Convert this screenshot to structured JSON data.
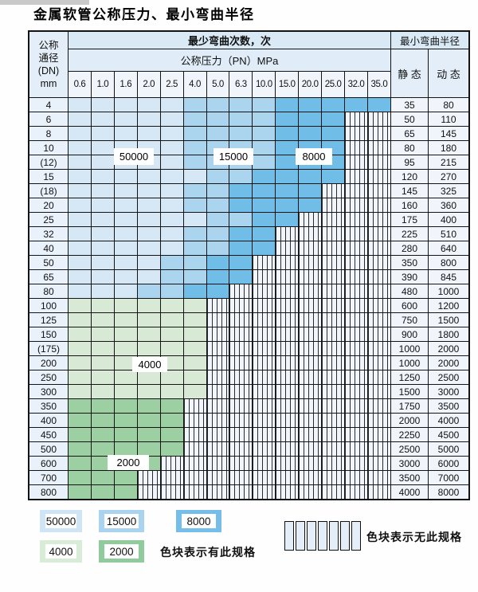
{
  "title": "金属软管公称压力、最小弯曲半径",
  "table_header": {
    "dn_lines": [
      "公称",
      "通径",
      "(DN)",
      "mm"
    ],
    "bend_cycles_label": "最少弯曲次数，次",
    "pressure_label": "公称压力（PN）MPa",
    "radius_label": "最小弯曲半径",
    "static_label": "静 态",
    "dynamic_label": "动 态"
  },
  "overlay_labels": [
    {
      "text": "50000"
    },
    {
      "text": "15000"
    },
    {
      "text": "8000"
    },
    {
      "text": "4000"
    },
    {
      "text": "2000"
    }
  ],
  "legend": {
    "blocks": [
      {
        "label": "50000",
        "color": "#cfe4f5"
      },
      {
        "label": "15000",
        "color": "#a9d3ee"
      },
      {
        "label": "8000",
        "color": "#74bee9"
      },
      {
        "label": "4000",
        "color": "#d9ecd8"
      },
      {
        "label": "2000",
        "color": "#8fcb9d"
      }
    ],
    "has_spec_note": "色块表示有此规格",
    "no_spec_note": "色块表示无此规格"
  },
  "colors": {
    "blue_light": "#d6e8f6",
    "blue_medium": "#abd5ef",
    "blue_deep": "#70bde7",
    "green_light": "#d8e9d5",
    "green_medium": "#9ccfa2",
    "header_band": "#d9e9f6",
    "grid_line": "#141414"
  },
  "chart_data": {
    "type": "heatmap",
    "title": "金属软管公称压力、最小弯曲半径",
    "x_axis_label": "公称压力（PN）MPa",
    "y_axis_label": "公称通径 (DN) mm",
    "cell_value_meaning": "最少弯曲次数，次",
    "columns_pn_mpa": [
      "0.6",
      "1.0",
      "1.6",
      "2.0",
      "2.5",
      "4.0",
      "5.0",
      "6.3",
      "10.0",
      "15.0",
      "20.0",
      "25.0",
      "32.0",
      "35.0"
    ],
    "cycle_bands_blue": [
      "50000",
      "15000",
      "8000"
    ],
    "cycle_bands_green": [
      "4000",
      "2000"
    ],
    "legend_meaning": {
      "colored": "色块表示有此规格",
      "hatched": "色块表示无此规格"
    },
    "rows": [
      {
        "dn": "4",
        "max_pn": "35.0",
        "zone": "blue",
        "static": "35",
        "dynamic": "80"
      },
      {
        "dn": "6",
        "max_pn": "25.0",
        "zone": "blue",
        "static": "50",
        "dynamic": "110"
      },
      {
        "dn": "8",
        "max_pn": "25.0",
        "zone": "blue",
        "static": "65",
        "dynamic": "145"
      },
      {
        "dn": "10",
        "max_pn": "25.0",
        "zone": "blue",
        "static": "80",
        "dynamic": "180"
      },
      {
        "dn": "(12)",
        "max_pn": "25.0",
        "zone": "blue",
        "static": "95",
        "dynamic": "215"
      },
      {
        "dn": "15",
        "max_pn": "25.0",
        "zone": "blue",
        "static": "120",
        "dynamic": "270"
      },
      {
        "dn": "(18)",
        "max_pn": "20.0",
        "zone": "blue",
        "static": "145",
        "dynamic": "325"
      },
      {
        "dn": "20",
        "max_pn": "20.0",
        "zone": "blue",
        "static": "160",
        "dynamic": "360"
      },
      {
        "dn": "25",
        "max_pn": "15.0",
        "zone": "blue",
        "static": "175",
        "dynamic": "400"
      },
      {
        "dn": "32",
        "max_pn": "10.0",
        "zone": "blue",
        "static": "225",
        "dynamic": "510"
      },
      {
        "dn": "40",
        "max_pn": "10.0",
        "zone": "blue",
        "static": "280",
        "dynamic": "640"
      },
      {
        "dn": "50",
        "max_pn": "6.3",
        "zone": "blue",
        "static": "350",
        "dynamic": "800"
      },
      {
        "dn": "65",
        "max_pn": "6.3",
        "zone": "blue",
        "static": "390",
        "dynamic": "845"
      },
      {
        "dn": "80",
        "max_pn": "5.0",
        "zone": "blue",
        "static": "480",
        "dynamic": "1000"
      },
      {
        "dn": "100",
        "max_pn": "4.0",
        "zone": "green",
        "cycles": "4000",
        "static": "600",
        "dynamic": "1200"
      },
      {
        "dn": "125",
        "max_pn": "4.0",
        "zone": "green",
        "cycles": "4000",
        "static": "750",
        "dynamic": "1500"
      },
      {
        "dn": "150",
        "max_pn": "4.0",
        "zone": "green",
        "cycles": "4000",
        "static": "900",
        "dynamic": "1800"
      },
      {
        "dn": "(175)",
        "max_pn": "4.0",
        "zone": "green",
        "cycles": "4000",
        "static": "1000",
        "dynamic": "2000"
      },
      {
        "dn": "200",
        "max_pn": "4.0",
        "zone": "green",
        "cycles": "4000",
        "static": "1000",
        "dynamic": "2000"
      },
      {
        "dn": "250",
        "max_pn": "4.0",
        "zone": "green",
        "cycles": "4000",
        "static": "1250",
        "dynamic": "2500"
      },
      {
        "dn": "300",
        "max_pn": "4.0",
        "zone": "green",
        "cycles": "4000",
        "static": "1500",
        "dynamic": "3000"
      },
      {
        "dn": "350",
        "max_pn": "2.5",
        "zone": "green",
        "cycles": "2000",
        "static": "1750",
        "dynamic": "3500"
      },
      {
        "dn": "400",
        "max_pn": "2.5",
        "zone": "green",
        "cycles": "2000",
        "static": "2000",
        "dynamic": "4000"
      },
      {
        "dn": "450",
        "max_pn": "2.5",
        "zone": "green",
        "cycles": "2000",
        "static": "2250",
        "dynamic": "4500"
      },
      {
        "dn": "500",
        "max_pn": "2.5",
        "zone": "green",
        "cycles": "2000",
        "static": "2500",
        "dynamic": "5000"
      },
      {
        "dn": "600",
        "max_pn": "2.0",
        "zone": "green",
        "cycles": "2000",
        "static": "3000",
        "dynamic": "6000"
      },
      {
        "dn": "700",
        "max_pn": "1.6",
        "zone": "green",
        "cycles": "2000",
        "static": "3500",
        "dynamic": "7000"
      },
      {
        "dn": "800",
        "max_pn": "1.6",
        "zone": "green",
        "cycles": "2000",
        "static": "4000",
        "dynamic": "8000"
      }
    ]
  }
}
